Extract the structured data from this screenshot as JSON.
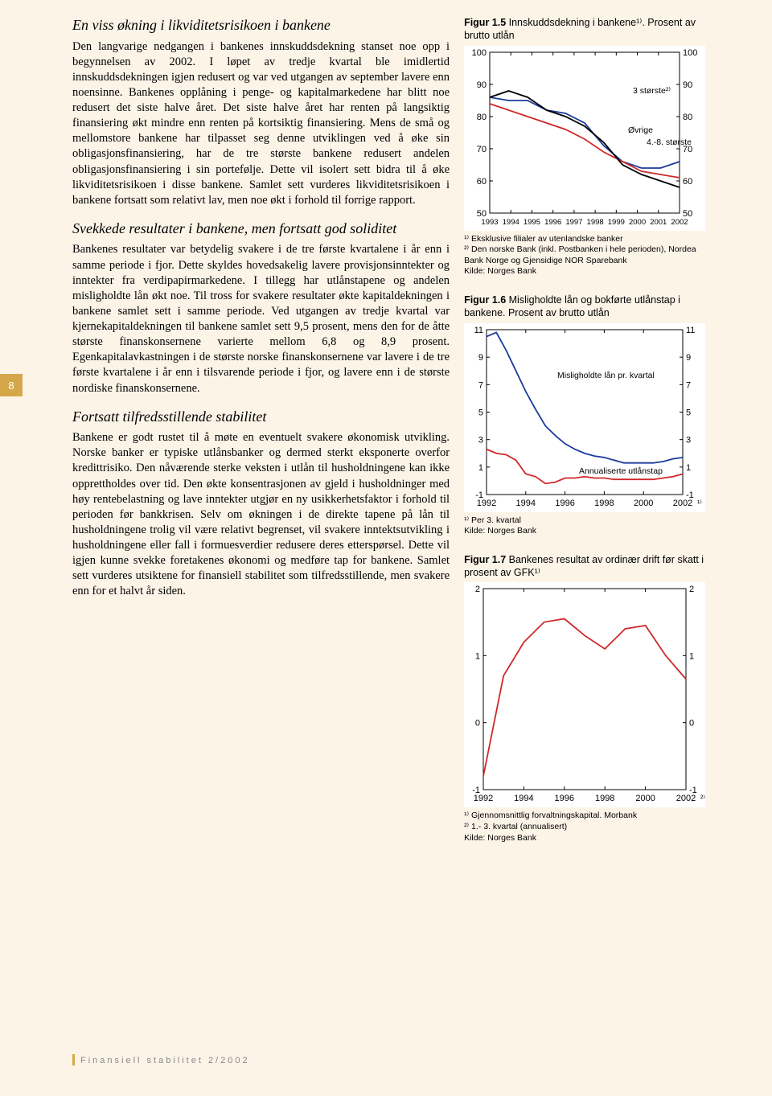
{
  "page_number": "8",
  "footer": "Finansiell stabilitet 2/2002",
  "left": {
    "h1": "En viss økning i likviditetsrisikoen i bankene",
    "p1": "Den langvarige nedgangen i bankenes innskuddsdekning stanset noe opp i begynnelsen av 2002. I løpet av tredje kvartal ble imidlertid innskuddsdekningen igjen redusert og var ved utgangen av september lavere enn noensinne. Bankenes opplåning i penge- og kapitalmarkedene har blitt noe redusert det siste halve året. Det siste halve året har renten på langsiktig finansiering økt mindre enn renten på kortsiktig finansiering. Mens de små og mellomstore bankene har tilpasset seg denne utviklingen ved å øke sin obligasjonsfinansiering, har de tre største bankene redusert andelen obligasjonsfinansiering i sin portefølje. Dette vil isolert sett bidra til å øke likviditetsrisikoen i disse bankene. Samlet sett vurderes likviditetsrisikoen i bankene fortsatt som relativt lav, men noe økt i forhold til forrige rapport.",
    "h2": "Svekkede resultater i bankene, men fortsatt god soliditet",
    "p2": "Bankenes resultater var betydelig svakere i de tre første kvartalene i år enn i samme periode i fjor. Dette skyldes hovedsakelig lavere provisjonsinntekter og inntekter fra verdipapirmarkedene. I tillegg har utlånstapene og andelen misligholdte lån økt noe. Til tross for svakere resultater økte kapitaldekningen i bankene samlet sett i samme periode. Ved utgangen av tredje kvartal var kjernekapitaldekningen til bankene samlet sett 9,5 prosent, mens den for de åtte største finanskonsernene varierte mellom 6,8 og 8,9 prosent. Egenkapitalavkastningen i de største norske finanskonsernene var lavere i de tre første kvartalene i år enn i tilsvarende periode i fjor, og lavere enn i de største nordiske finanskonsernene.",
    "h3": "Fortsatt tilfredsstillende stabilitet",
    "p3": "Bankene er godt rustet til å møte en eventuelt svakere økonomisk utvikling. Norske banker er typiske utlånsbanker og dermed sterkt eksponerte overfor kredittrisiko. Den nåværende sterke veksten i utlån til husholdningene kan ikke opprettholdes over tid. Den økte konsentrasjonen av gjeld i husholdninger med høy rentebelastning og lave inntekter utgjør en ny usikkerhetsfaktor i forhold til perioden før bankkrisen. Selv om økningen i de direkte tapene på lån til husholdningene trolig vil være relativt begrenset, vil svakere inntektsutvikling i husholdningene eller fall i formuesverdier redusere deres etterspørsel. Dette vil igjen kunne svekke foretakenes økonomi og medføre tap for bankene. Samlet sett vurderes utsiktene for finansiell stabilitet som tilfredsstillende, men svakere enn for et halvt år siden."
  },
  "chart15": {
    "title_bold": "Figur 1.5",
    "title_rest": " Innskuddsdekning i bankene¹⁾. Prosent av brutto utlån",
    "x_labels": [
      "1993",
      "1994",
      "1995",
      "1996",
      "1997",
      "1998",
      "1999",
      "2000",
      "2001",
      "2002"
    ],
    "y_ticks": [
      50,
      60,
      70,
      80,
      90,
      100
    ],
    "ylim": [
      50,
      100
    ],
    "series": {
      "s1": {
        "label": "3 største²⁾",
        "color": "#1a3a9a",
        "label_pos": [
          178,
          51
        ],
        "values": [
          86,
          85,
          85,
          82,
          81,
          78,
          71,
          66,
          64,
          64,
          66
        ]
      },
      "s2": {
        "label": "Øvrige",
        "color": "#d0282a",
        "label_pos": [
          172,
          100
        ],
        "values": [
          84,
          82,
          80,
          78,
          76,
          73,
          69,
          66,
          63,
          62,
          61
        ]
      },
      "s3": {
        "label": "4.-8. største",
        "color": "#000000",
        "label_pos": [
          195,
          115
        ],
        "values": [
          86,
          88,
          86,
          82,
          80,
          77,
          72,
          65,
          62,
          60,
          58
        ]
      }
    },
    "footnote": "¹⁾ Eksklusive filialer av utenlandske banker\n²⁾ Den norske Bank (inkl. Postbanken i hele perioden), Nordea Bank Norge og Gjensidige NOR Sparebank\nKilde: Norges Bank",
    "bg": "#ffffff",
    "fontsize_axis": 10,
    "fontsize_label": 10
  },
  "chart16": {
    "title_bold": "Figur 1.6",
    "title_rest": " Misligholdte lån og bokførte utlånstap i bankene. Prosent av brutto utlån",
    "x_labels": [
      "1992",
      "1994",
      "1996",
      "1998",
      "2000",
      "2002"
    ],
    "y_ticks": [
      -1,
      1,
      3,
      5,
      7,
      9,
      11
    ],
    "ylim": [
      -1,
      11
    ],
    "x_extra": "¹⁾",
    "series": {
      "s1": {
        "label": "Misligholdte lån pr. kvartal",
        "color": "#1a3a9a",
        "label_pos": [
          88,
          60
        ],
        "values": [
          10.5,
          10.8,
          9.5,
          8.0,
          6.5,
          5.2,
          4.0,
          3.3,
          2.7,
          2.3,
          2.0,
          1.8,
          1.7,
          1.5,
          1.3,
          1.3,
          1.3,
          1.3,
          1.4,
          1.6,
          1.7
        ]
      },
      "s2": {
        "label": "Annualiserte utlånstap",
        "color": "#d0282a",
        "label_pos": [
          115,
          179
        ],
        "values": [
          2.3,
          2.0,
          1.9,
          1.5,
          0.5,
          0.3,
          -0.2,
          -0.1,
          0.2,
          0.2,
          0.3,
          0.2,
          0.2,
          0.1,
          0.1,
          0.1,
          0.1,
          0.1,
          0.2,
          0.3,
          0.5
        ]
      }
    },
    "footnote": "¹⁾ Per 3. kvartal\nKilde: Norges Bank",
    "bg": "#ffffff"
  },
  "chart17": {
    "title_bold": "Figur 1.7",
    "title_rest": " Bankenes resultat av ordinær drift før skatt i prosent av GFK¹⁾",
    "x_labels": [
      "1992",
      "1994",
      "1996",
      "1998",
      "2000",
      "2002"
    ],
    "y_ticks": [
      -1,
      0,
      1,
      2
    ],
    "ylim": [
      -1,
      2
    ],
    "x_extra": "²⁾",
    "series": {
      "s1": {
        "color": "#d0282a",
        "values": [
          -0.8,
          0.7,
          1.2,
          1.5,
          1.55,
          1.3,
          1.1,
          1.4,
          1.45,
          1.0,
          0.65
        ]
      }
    },
    "footnote": "¹⁾ Gjennomsnittlig forvaltningskapital. Morbank\n²⁾ 1.- 3. kvartal (annualisert)\nKilde: Norges Bank",
    "bg": "#ffffff"
  }
}
